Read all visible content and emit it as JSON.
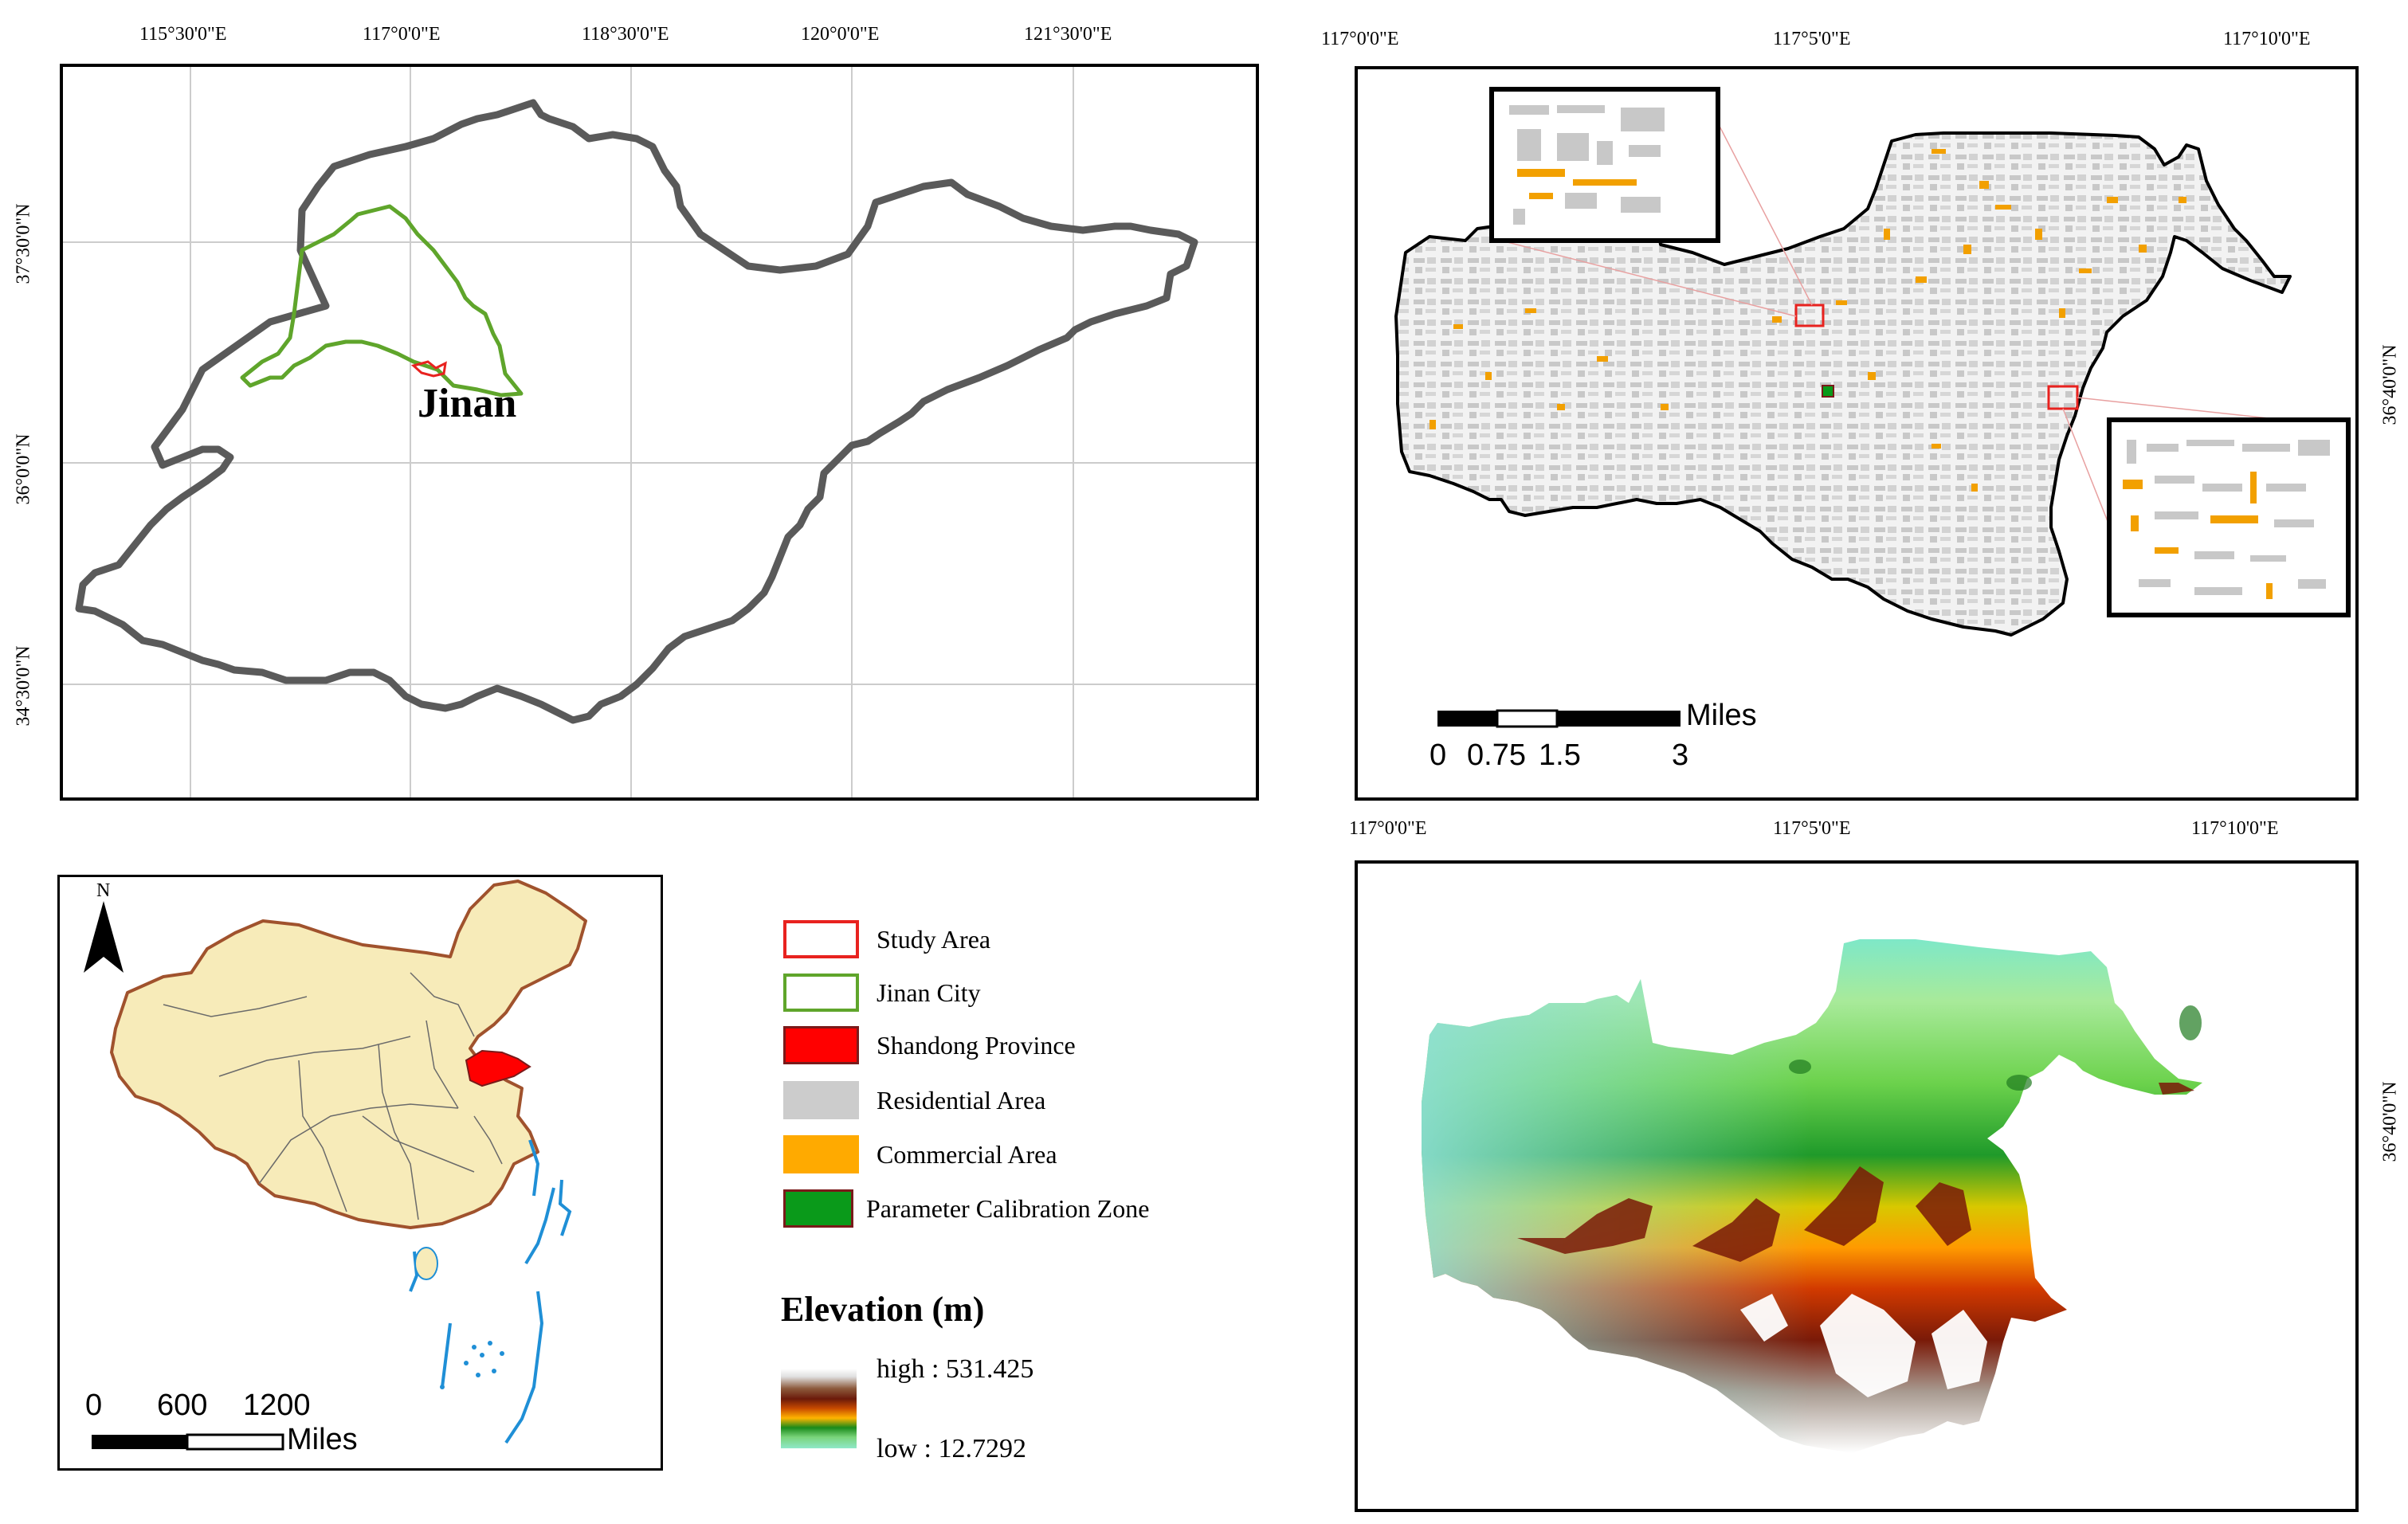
{
  "shandong_map": {
    "x_ticks": [
      "115°30'0\"E",
      "117°0'0\"E",
      "118°30'0\"E",
      "120°0'0\"E",
      "121°30'0\"E"
    ],
    "y_ticks": [
      "37°30'0\"N",
      "36°0'0\"N",
      "34°30'0\"N"
    ],
    "city_label": "Jinan"
  },
  "study_area_map": {
    "x_ticks": [
      "117°0'0\"E",
      "117°5'0\"E",
      "117°10'0\"E"
    ],
    "y_tick": "36°40'0\"N",
    "scale": {
      "ticks": [
        "0",
        "0.75",
        "1.5",
        "3"
      ],
      "unit": "Miles"
    }
  },
  "china_map": {
    "north_label": "N",
    "scale": {
      "ticks": [
        "0",
        "600",
        "1200"
      ],
      "unit": "Miles"
    }
  },
  "legend": {
    "items": [
      {
        "label": "Study Area",
        "fill": "#ffffff",
        "stroke": "#e8221f"
      },
      {
        "label": "Jinan City",
        "fill": "#ffffff",
        "stroke": "#5fa52b"
      },
      {
        "label": "Shandong Province",
        "fill": "#ff0000",
        "stroke": "#7a1a1a"
      },
      {
        "label": "Residential Area",
        "fill": "#cccccc",
        "stroke": "#cccccc"
      },
      {
        "label": "Commercial Area",
        "fill": "#ffaa00",
        "stroke": "#ffaa00"
      },
      {
        "label": "Parameter Calibration Zone",
        "fill": "#0a9a1a",
        "stroke": "#7a1a1a"
      }
    ],
    "elevation_title": "Elevation (m)",
    "elevation_high": "high : 531.425",
    "elevation_low": "low : 12.7292"
  },
  "elevation_map": {
    "x_ticks": [
      "117°0'0\"E",
      "117°5'0\"E",
      "117°10'0\"E"
    ],
    "y_tick": "36°40'0\"N"
  },
  "colors": {
    "province_outline": "#5a5a5a",
    "jinan_outline": "#5fa52b",
    "study_area_outline": "#e8221f",
    "china_fill": "#f7ebb9",
    "china_border": "#a0522d",
    "sea_lines": "#1f8fd6",
    "residential": "#c8c8c8",
    "commercial": "#f2a000"
  }
}
